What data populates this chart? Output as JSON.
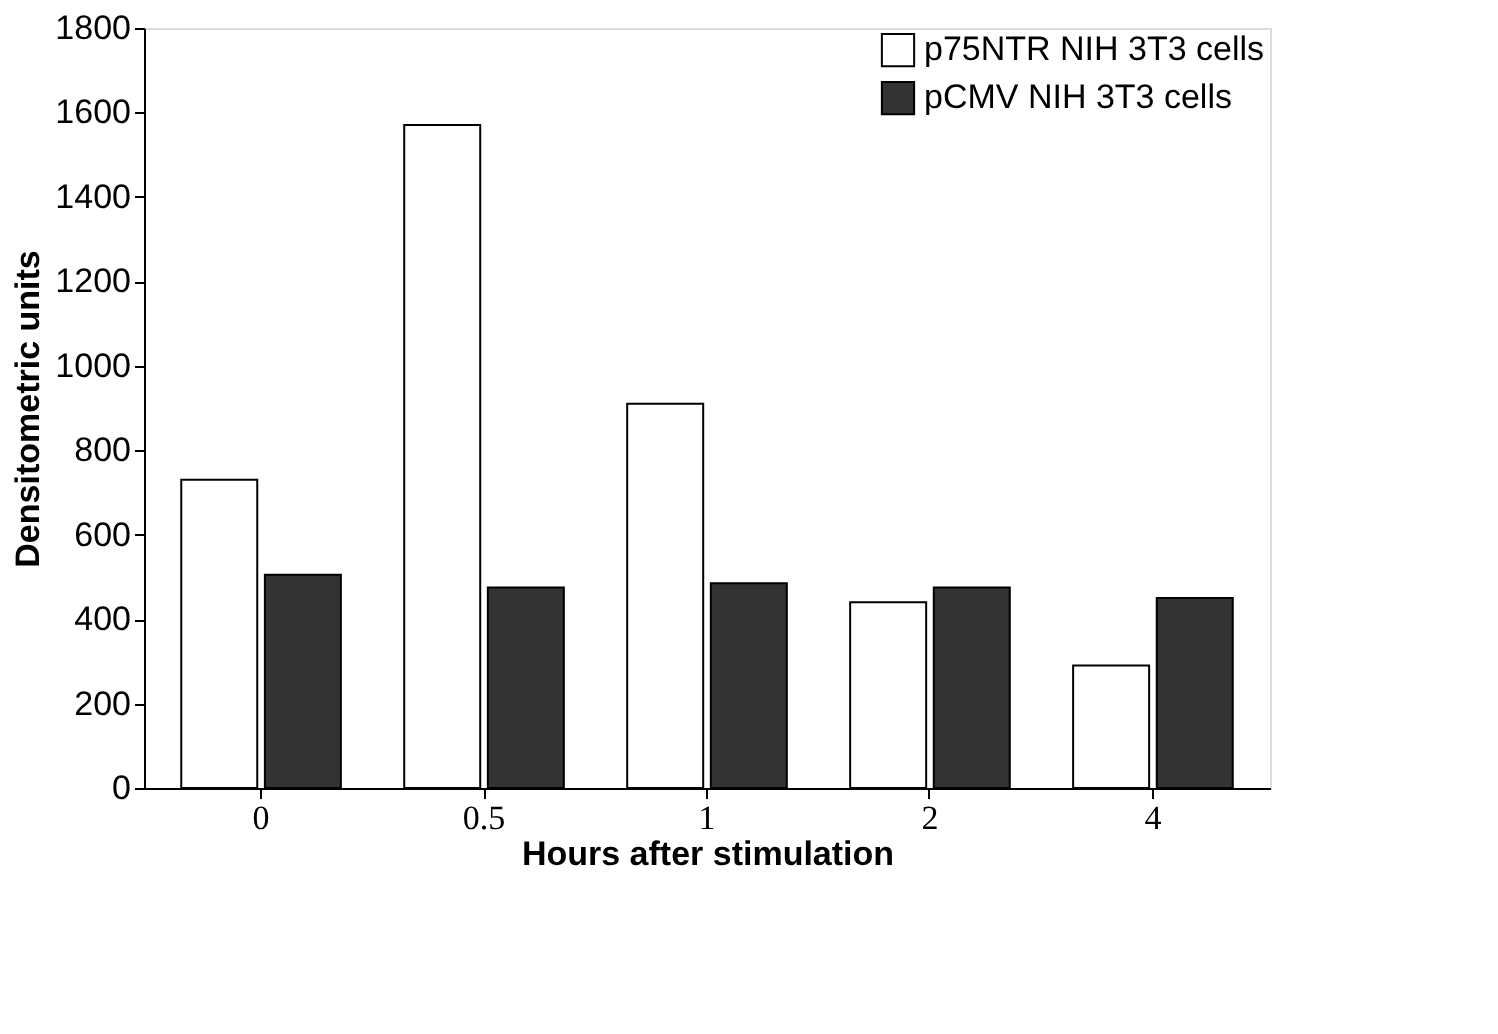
{
  "chart_data": {
    "type": "bar",
    "xlabel": "Hours after stimulation",
    "ylabel": "Densitometric units",
    "categories": [
      "0",
      "0.5",
      "1",
      "2",
      "4"
    ],
    "series": [
      {
        "name": "p75NTR NIH 3T3 cells",
        "color": "#ffffff",
        "values": [
          730,
          1570,
          910,
          440,
          290
        ]
      },
      {
        "name": "pCMV NIH 3T3 cells",
        "color": "#333333",
        "values": [
          505,
          475,
          485,
          475,
          450
        ]
      }
    ],
    "ylim": [
      0,
      1800
    ],
    "yticks": [
      0,
      200,
      400,
      600,
      800,
      1000,
      1200,
      1400,
      1600,
      1800
    ],
    "grid": false,
    "legend": "top right"
  }
}
